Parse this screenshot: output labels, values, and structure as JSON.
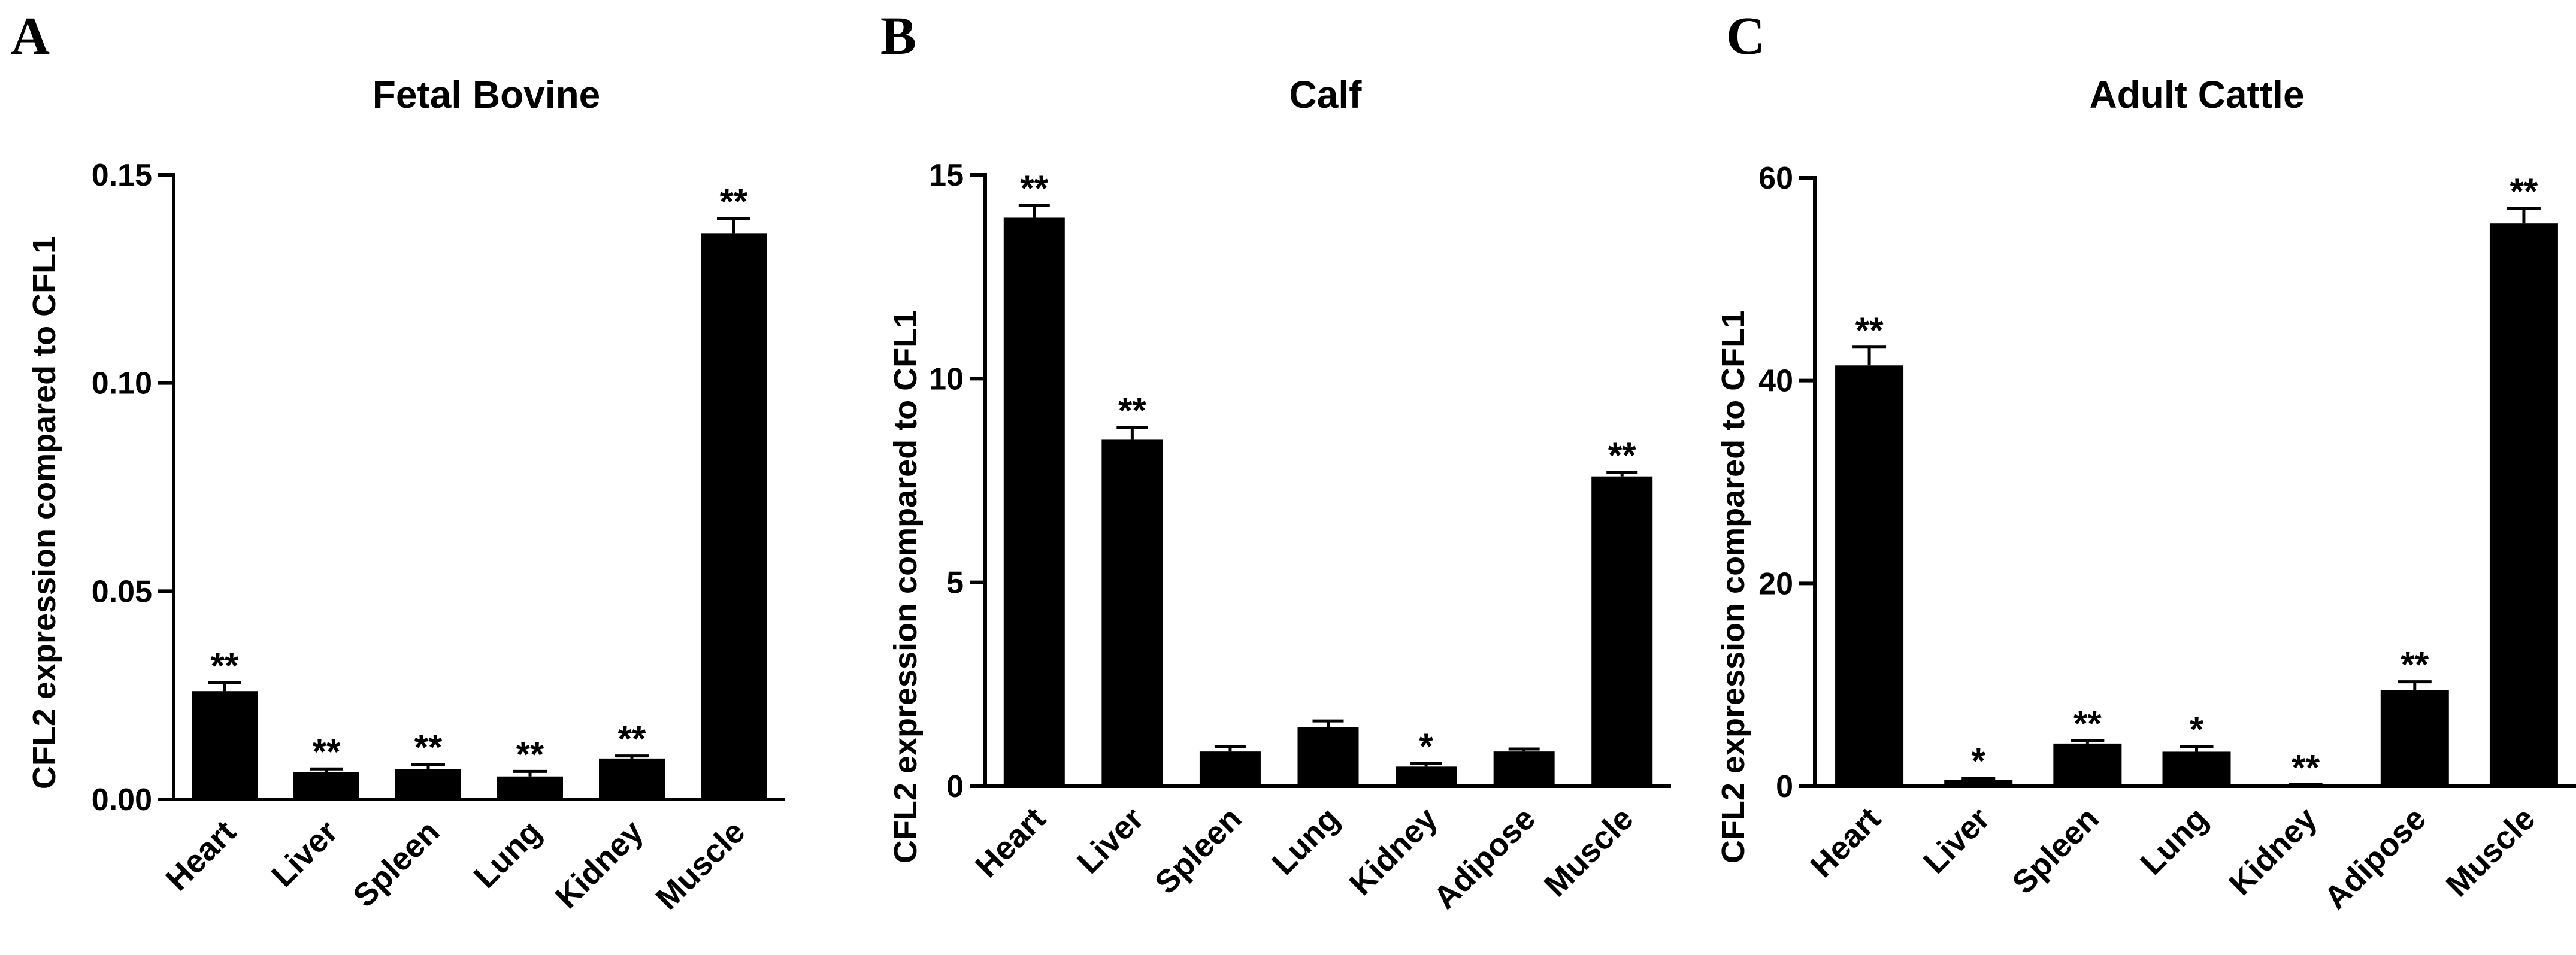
{
  "chart_data": [
    {
      "type": "bar",
      "panel": "A",
      "title": "Fetal Bovine",
      "ylabel": "CFL2 expression compared to CFL1",
      "xlabel": "",
      "ylim": [
        0,
        0.15
      ],
      "yticks": [
        "0.00",
        "0.05",
        "0.10",
        "0.15"
      ],
      "categories": [
        "Heart",
        "Liver",
        "Spleen",
        "Lung",
        "Kidney",
        "Muscle"
      ],
      "values": [
        0.026,
        0.0065,
        0.0072,
        0.0055,
        0.0098,
        0.136
      ],
      "errors": [
        0.002,
        0.0008,
        0.0012,
        0.0012,
        0.0006,
        0.0035
      ],
      "significance": [
        "**",
        "**",
        "**",
        "**",
        "**",
        "**"
      ],
      "grid": false
    },
    {
      "type": "bar",
      "panel": "B",
      "title": "Calf",
      "ylabel": "CFL2 expression compared to CFL1",
      "xlabel": "",
      "ylim": [
        0,
        15
      ],
      "yticks": [
        "0",
        "5",
        "10",
        "15"
      ],
      "categories": [
        "Heart",
        "Liver",
        "Spleen",
        "Lung",
        "Kidney",
        "Adipose",
        "Muscle"
      ],
      "values": [
        13.95,
        8.5,
        0.85,
        1.45,
        0.48,
        0.85,
        7.6
      ],
      "errors": [
        0.3,
        0.3,
        0.12,
        0.15,
        0.08,
        0.06,
        0.1
      ],
      "significance": [
        "**",
        "**",
        "",
        "",
        "*",
        "",
        "**"
      ],
      "grid": false
    },
    {
      "type": "bar",
      "panel": "C",
      "title": "Adult Cattle",
      "ylabel": "CFL2 expression compared to CFL1",
      "xlabel": "",
      "ylim": [
        0,
        60
      ],
      "yticks": [
        "0",
        "20",
        "40",
        "60"
      ],
      "categories": [
        "Heart",
        "Liver",
        "Spleen",
        "Lung",
        "Kidney",
        "Adipose",
        "Muscle"
      ],
      "values": [
        41.5,
        0.6,
        4.2,
        3.4,
        0.1,
        9.5,
        55.5
      ],
      "errors": [
        1.8,
        0.2,
        0.3,
        0.5,
        0.05,
        0.8,
        1.5
      ],
      "significance": [
        "**",
        "*",
        "**",
        "*",
        "**",
        "**",
        "**"
      ],
      "grid": false
    }
  ]
}
